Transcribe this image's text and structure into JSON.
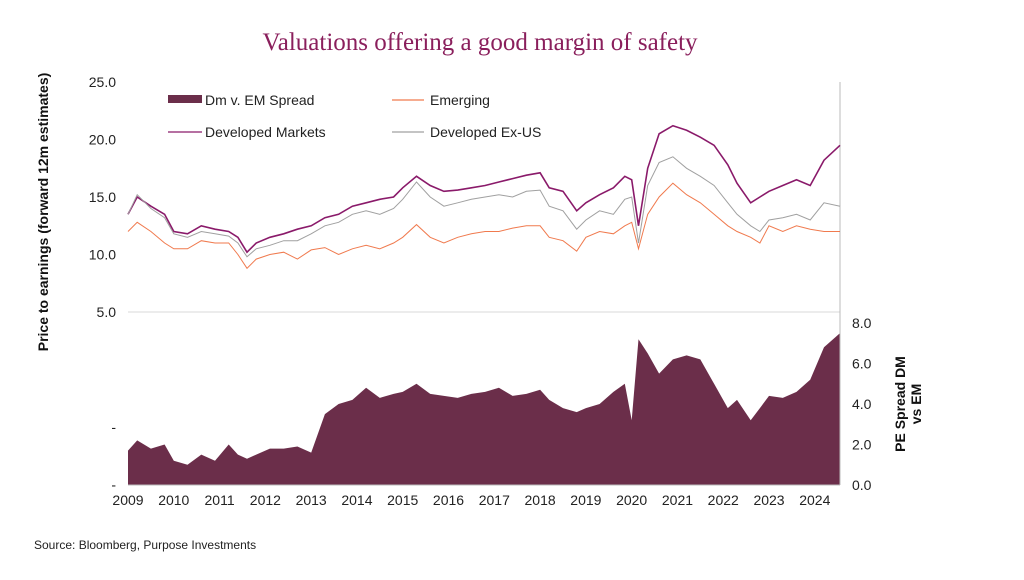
{
  "chart_data": {
    "type": "line",
    "title": "Valuations offering a good margin of safety",
    "ylabel": "Price to earnings (forward 12m estimates)",
    "ylabel_right": [
      "PE Spread DM",
      "vs EM"
    ],
    "source": "Source: Bloomberg, Purpose Investments",
    "xlim": [
      2009,
      2024.55
    ],
    "ylim": [
      -10,
      25
    ],
    "ylim_right": [
      0,
      8
    ],
    "x_ticks": [
      "2009",
      "2010",
      "2011",
      "2012",
      "2013",
      "2014",
      "2015",
      "2016",
      "2017",
      "2018",
      "2019",
      "2020",
      "2021",
      "2022",
      "2023",
      "2024"
    ],
    "y_ticks": [
      {
        "value": 25,
        "label": "25.0"
      },
      {
        "value": 20,
        "label": "20.0"
      },
      {
        "value": 15,
        "label": "15.0"
      },
      {
        "value": 10,
        "label": "10.0"
      },
      {
        "value": 5,
        "label": "5.0"
      },
      {
        "value": -5,
        "label": "-"
      },
      {
        "value": -10,
        "label": "-"
      }
    ],
    "y_ticks_right": [
      "8.0",
      "6.0",
      "4.0",
      "2.0",
      "0.0"
    ],
    "grid": false,
    "legend": "top-left",
    "x": [
      2009.0,
      2009.2,
      2009.5,
      2009.8,
      2010.0,
      2010.3,
      2010.6,
      2010.9,
      2011.2,
      2011.4,
      2011.6,
      2011.8,
      2012.1,
      2012.4,
      2012.7,
      2013.0,
      2013.3,
      2013.6,
      2013.9,
      2014.2,
      2014.5,
      2014.8,
      2015.0,
      2015.3,
      2015.6,
      2015.9,
      2016.2,
      2016.5,
      2016.8,
      2017.1,
      2017.4,
      2017.7,
      2018.0,
      2018.2,
      2018.5,
      2018.8,
      2019.0,
      2019.3,
      2019.6,
      2019.85,
      2020.0,
      2020.15,
      2020.35,
      2020.6,
      2020.9,
      2021.2,
      2021.5,
      2021.8,
      2022.1,
      2022.3,
      2022.6,
      2022.8,
      2023.0,
      2023.3,
      2023.6,
      2023.9,
      2024.2,
      2024.55
    ],
    "series": [
      {
        "name": "Dm v. EM Spread",
        "type": "area",
        "axis": "right",
        "color": "#6b2e4a",
        "values": [
          1.7,
          2.2,
          1.8,
          2.0,
          1.2,
          1.0,
          1.5,
          1.2,
          2.0,
          1.5,
          1.3,
          1.5,
          1.8,
          1.8,
          1.9,
          1.6,
          3.5,
          4.0,
          4.2,
          4.8,
          4.3,
          4.5,
          4.6,
          5.0,
          4.5,
          4.4,
          4.3,
          4.5,
          4.6,
          4.8,
          4.4,
          4.5,
          4.7,
          4.2,
          3.8,
          3.6,
          3.8,
          4.0,
          4.6,
          5.0,
          3.2,
          7.2,
          6.5,
          5.5,
          6.2,
          6.4,
          6.2,
          5.0,
          3.8,
          4.2,
          3.2,
          3.8,
          4.4,
          4.3,
          4.6,
          5.2,
          6.8,
          7.5
        ]
      },
      {
        "name": "Emerging",
        "type": "line",
        "axis": "left",
        "color": "#f07a4e",
        "values": [
          12,
          12.8,
          12,
          11,
          10.5,
          10.5,
          11.2,
          11,
          11,
          10,
          8.8,
          9.6,
          10,
          10.2,
          9.6,
          10.4,
          10.6,
          10,
          10.5,
          10.8,
          10.5,
          11,
          11.5,
          12.6,
          11.5,
          11,
          11.5,
          11.8,
          12,
          12,
          12.3,
          12.5,
          12.5,
          11.5,
          11.2,
          10.3,
          11.5,
          12,
          11.8,
          12.5,
          12.8,
          10.5,
          13.5,
          15,
          16.2,
          15.2,
          14.5,
          13.5,
          12.5,
          12,
          11.5,
          11,
          12.5,
          12,
          12.5,
          12.2,
          12,
          12
        ]
      },
      {
        "name": "Developed Markets",
        "type": "line",
        "axis": "left",
        "color": "#8a1a6a",
        "values": [
          13.5,
          15,
          14.2,
          13.5,
          12,
          11.8,
          12.5,
          12.2,
          12,
          11.5,
          10.2,
          11,
          11.5,
          11.8,
          12.2,
          12.5,
          13.2,
          13.5,
          14.2,
          14.5,
          14.8,
          15,
          15.8,
          16.8,
          16,
          15.5,
          15.6,
          15.8,
          16,
          16.3,
          16.6,
          16.9,
          17.1,
          15.8,
          15.5,
          13.8,
          14.5,
          15.2,
          15.8,
          16.8,
          16.5,
          12.5,
          17.5,
          20.5,
          21.2,
          20.8,
          20.2,
          19.5,
          17.8,
          16.2,
          14.5,
          15,
          15.5,
          16,
          16.5,
          16,
          18.2,
          19.5
        ]
      },
      {
        "name": "Developed Ex-US",
        "type": "line",
        "axis": "left",
        "color": "#a0a0a0",
        "values": [
          13.5,
          15.2,
          14,
          13.2,
          11.8,
          11.5,
          12,
          11.8,
          11.6,
          11,
          9.8,
          10.5,
          10.8,
          11.2,
          11.2,
          11.8,
          12.5,
          12.8,
          13.5,
          13.8,
          13.5,
          14,
          14.8,
          16.3,
          15,
          14.2,
          14.5,
          14.8,
          15,
          15.2,
          15,
          15.5,
          15.6,
          14.2,
          13.8,
          12.2,
          13,
          13.8,
          13.5,
          14.8,
          15,
          11,
          16,
          18,
          18.5,
          17.5,
          16.8,
          16,
          14.5,
          13.5,
          12.5,
          12,
          13,
          13.2,
          13.5,
          13,
          14.5,
          14.2
        ]
      }
    ]
  }
}
